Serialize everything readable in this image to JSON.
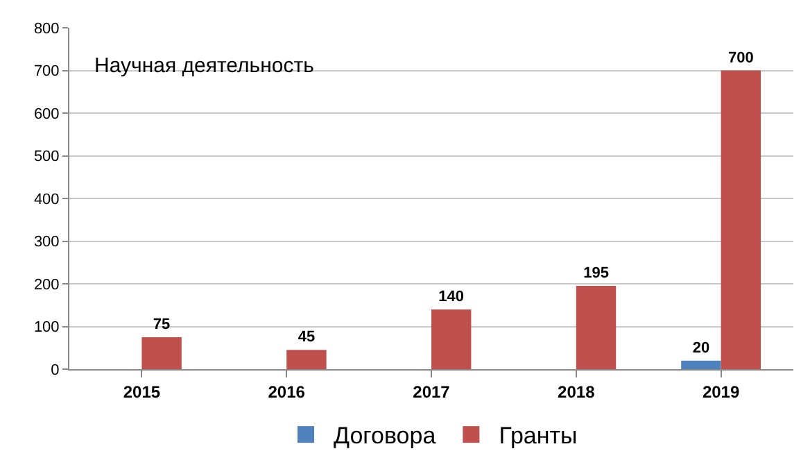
{
  "chart_data": {
    "type": "bar",
    "title": "Научная деятельность",
    "categories": [
      "2015",
      "2016",
      "2017",
      "2018",
      "2019"
    ],
    "series": [
      {
        "name": "Договора",
        "color": "#4f81bd",
        "values": [
          null,
          null,
          null,
          null,
          20
        ]
      },
      {
        "name": "Гранты",
        "color": "#c0504d",
        "values": [
          75,
          45,
          140,
          195,
          700
        ]
      }
    ],
    "ylim": [
      0,
      800
    ],
    "yticks": [
      0,
      100,
      200,
      300,
      400,
      500,
      600,
      700,
      800
    ],
    "grid": "y",
    "legend": "bottom",
    "data_labels": true
  }
}
